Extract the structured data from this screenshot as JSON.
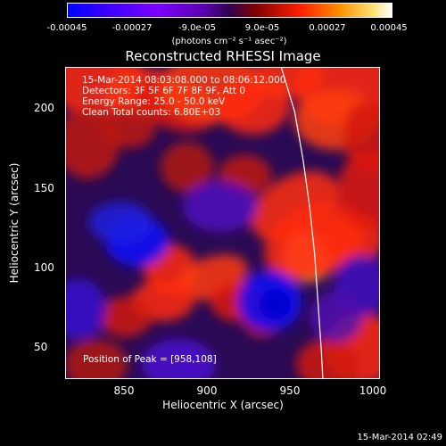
{
  "colorbar": {
    "ticks": [
      "-0.00045",
      "-0.00027",
      "-9.0e-05",
      "9.0e-05",
      "0.00027",
      "0.00045"
    ],
    "units": "(photons cm⁻² s⁻¹ asec⁻²)"
  },
  "chart_data": {
    "type": "heatmap",
    "title": "Reconstructed RHESSI Image",
    "xlabel": "Heliocentric X (arcsec)",
    "ylabel": "Heliocentric Y (arcsec)",
    "xlim": [
      812,
      1002
    ],
    "ylim": [
      30,
      228
    ],
    "x_ticks": [
      850,
      900,
      950,
      1000
    ],
    "y_ticks": [
      50,
      100,
      150,
      200
    ],
    "colorbar_range": [
      -0.00045,
      0.00045
    ],
    "peak_position": [
      958,
      108
    ],
    "annotations": [
      "15-Mar-2014 08:03:08.000 to 08:06:12.000",
      "Detectors: 3F 5F 6F 7F 8F 9F, Att 0",
      "Energy Range: 25.0 - 50.0 keV",
      "Clean     Total counts: 6.80E+03",
      "Position of Peak = [958,108]"
    ]
  },
  "timestamp": "15-Mar-2014 02:49",
  "colors": {
    "background": "#000000",
    "low": "#0000ff",
    "mid": "#5a00b0",
    "high": "#ff2000",
    "peak": "#ffe070"
  }
}
